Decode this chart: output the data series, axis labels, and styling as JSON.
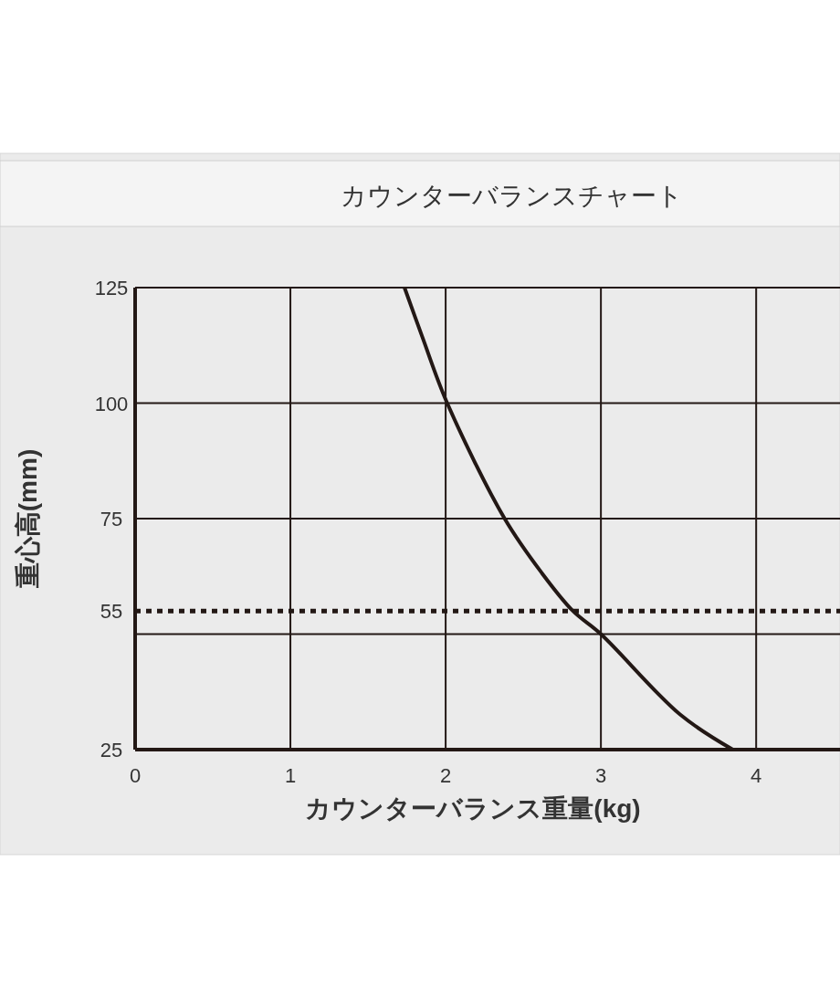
{
  "chart_data": {
    "type": "line",
    "title": "カウンターバランスチャート",
    "xlabel": "カウンターバランス重量(kg)",
    "ylabel": "重心高(mm)",
    "x": [
      1.735,
      1.85,
      2.01,
      2.38,
      2.62,
      2.82,
      3.0,
      3.51,
      3.85
    ],
    "series": [
      {
        "color": "#231815",
        "values": [
          125,
          114.3,
          100,
          75,
          63.2,
          55,
          50,
          32.6,
          25
        ]
      }
    ],
    "xlim": [
      0,
      4.54
    ],
    "xticks": [
      0,
      1,
      2,
      3,
      4
    ],
    "ylim": [
      25,
      125
    ],
    "yticks": [
      25,
      {
        "value": 50,
        "label": null
      },
      75,
      100,
      125
    ],
    "ref_lines": [
      {
        "axis": "y",
        "value": 55,
        "label": "55",
        "line_style": "dotted",
        "color": "#231815"
      }
    ],
    "grid": true,
    "marker": "none",
    "line_style": "solid"
  }
}
